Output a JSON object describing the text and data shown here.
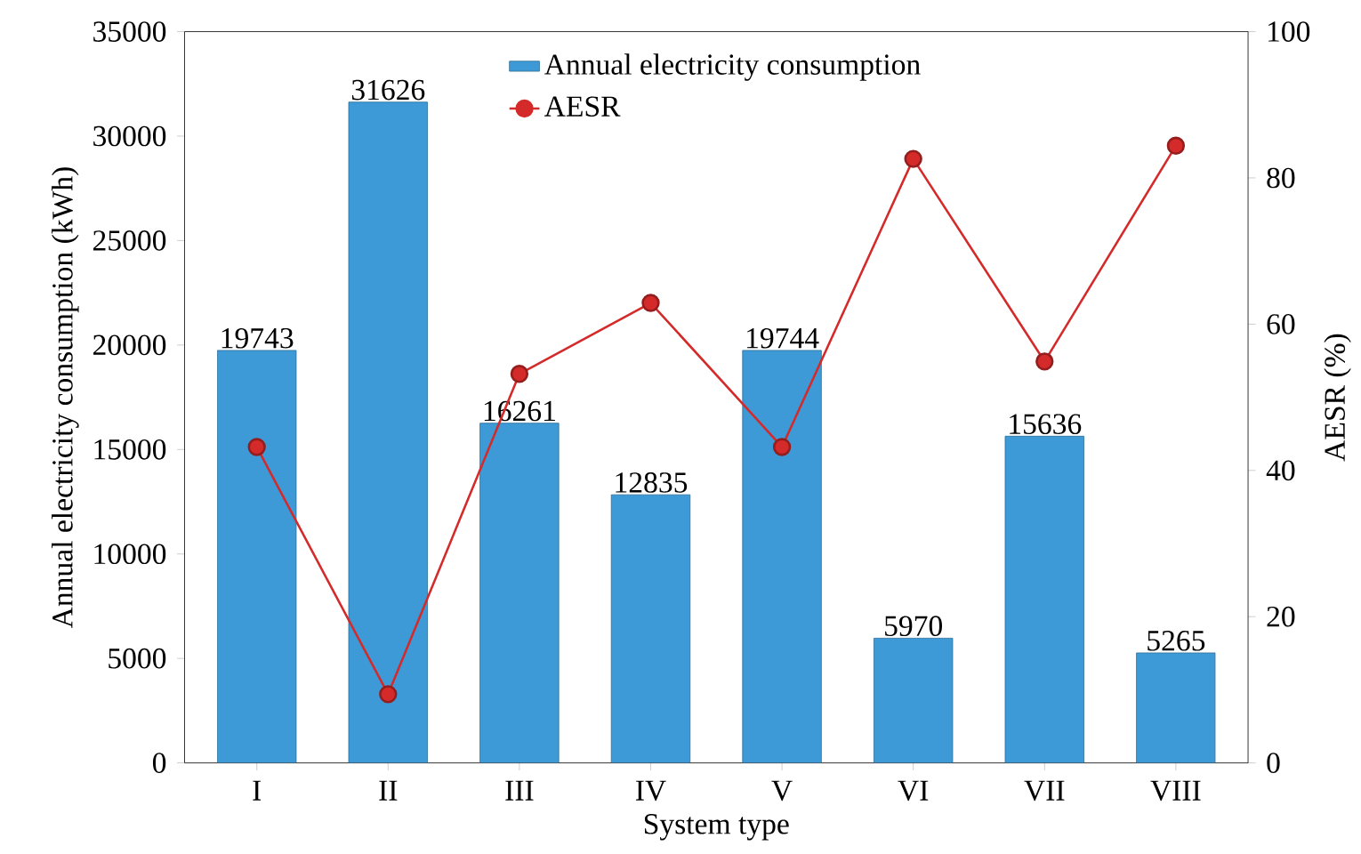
{
  "chart_data": {
    "type": "bar",
    "xlabel": "System type",
    "ylabel": "Annual electricity consumption (kWh)",
    "y2label": "AESR (%)",
    "categories": [
      "I",
      "II",
      "III",
      "IV",
      "V",
      "VI",
      "VII",
      "VIII"
    ],
    "series": [
      {
        "name": "Annual electricity consumption",
        "color": "#3d9ad6",
        "values": [
          19743,
          31626,
          16261,
          12835,
          19744,
          5970,
          15636,
          5265
        ],
        "value_labels": [
          "19743",
          "31626",
          "16261",
          "12835",
          "19744",
          "5970",
          "15636",
          "5265"
        ]
      },
      {
        "name": "AESR",
        "type": "line",
        "axis": "y2",
        "color": "#d42a2a",
        "marker": "circle",
        "values": [
          43.2,
          9.4,
          53.2,
          62.9,
          43.2,
          82.6,
          54.9,
          84.4
        ]
      }
    ],
    "ylim": [
      0,
      35000
    ],
    "yticks": [
      0,
      5000,
      10000,
      15000,
      20000,
      25000,
      30000,
      35000
    ],
    "y2lim": [
      0,
      100
    ],
    "y2ticks": [
      0,
      20,
      40,
      60,
      80,
      100
    ],
    "grid": false,
    "legend": "top"
  }
}
